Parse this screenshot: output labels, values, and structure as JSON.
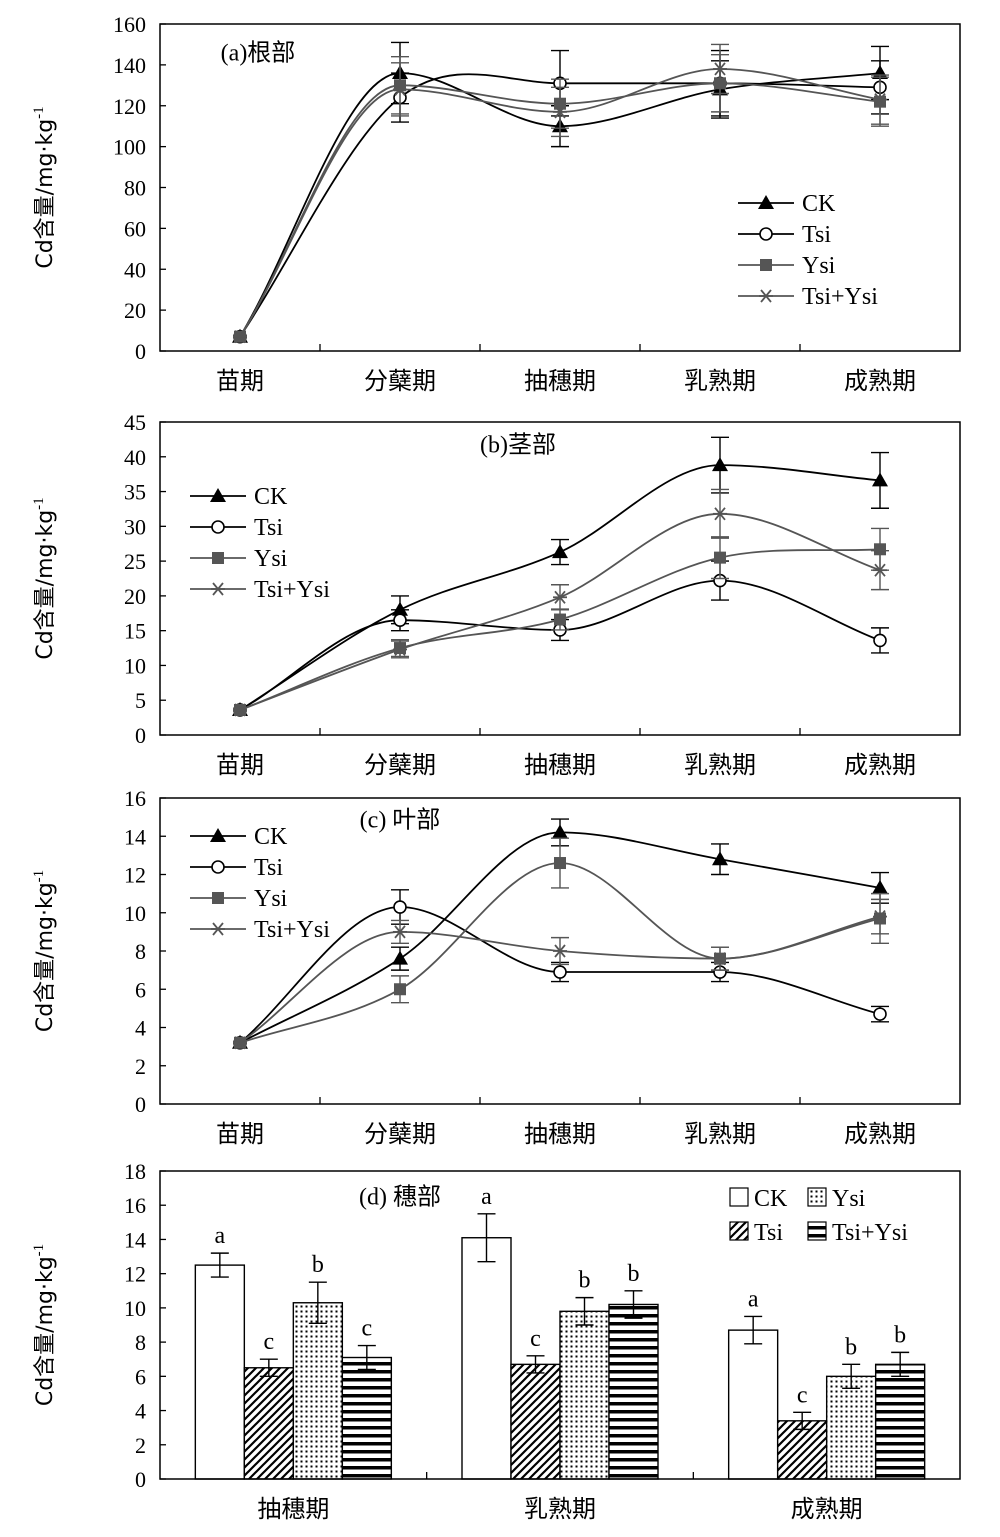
{
  "figure": {
    "y_axis_label": "Cd含量/mg·kg",
    "y_axis_label_superscript": "-1",
    "series_names": [
      "CK",
      "Tsi",
      "Ysi",
      "Tsi+Ysi"
    ],
    "series_markers": {
      "CK": "filled-triangle",
      "Tsi": "open-circle",
      "Ysi": "filled-square",
      "Tsi+Ysi": "asterisk"
    },
    "bar_patterns": {
      "CK": "open",
      "Tsi": "diagonal-hatch",
      "Ysi": "dotted",
      "Tsi+Ysi": "horizontal-stripes"
    },
    "colors": {
      "dark_series": "#000000",
      "gray_series": "#555555",
      "frame": "#000000",
      "background": "#ffffff"
    }
  },
  "chart_data": [
    {
      "id": "a",
      "type": "line",
      "title": "(a)根部",
      "categories": [
        "苗期",
        "分蘖期",
        "抽穗期",
        "乳熟期",
        "成熟期"
      ],
      "ylim": [
        0,
        160
      ],
      "yticks": [
        "0",
        "20",
        "40",
        "60",
        "80",
        "100",
        "120",
        "140",
        "160"
      ],
      "legend_position": "bottom-right",
      "series": [
        {
          "name": "CK",
          "values": [
            7,
            136,
            110,
            128,
            136
          ],
          "errors": [
            0,
            15,
            10,
            14,
            13
          ]
        },
        {
          "name": "Tsi",
          "values": [
            7,
            124,
            131,
            131,
            129
          ],
          "errors": [
            0,
            12,
            16,
            16,
            13
          ]
        },
        {
          "name": "Ysi",
          "values": [
            7,
            130,
            121,
            131,
            122
          ],
          "errors": [
            0,
            14,
            12,
            14,
            12
          ]
        },
        {
          "name": "Tsi+Ysi",
          "values": [
            7,
            128,
            117,
            138,
            123
          ],
          "errors": [
            0,
            13,
            12,
            12,
            12
          ]
        }
      ]
    },
    {
      "id": "b",
      "type": "line",
      "title": "(b)茎部",
      "categories": [
        "苗期",
        "分蘖期",
        "抽穗期",
        "乳熟期",
        "成熟期"
      ],
      "ylim": [
        0,
        45
      ],
      "yticks": [
        "0",
        "5",
        "10",
        "15",
        "20",
        "25",
        "30",
        "35",
        "40",
        "45"
      ],
      "legend_position": "top-left",
      "series": [
        {
          "name": "CK",
          "values": [
            3.6,
            18,
            26.3,
            38.8,
            36.6
          ],
          "errors": [
            0,
            2,
            1.8,
            4,
            4
          ]
        },
        {
          "name": "Tsi",
          "values": [
            3.6,
            16.5,
            15.1,
            22.2,
            13.6
          ],
          "errors": [
            0,
            1.5,
            1.5,
            2.8,
            1.8
          ]
        },
        {
          "name": "Ysi",
          "values": [
            3.6,
            12.5,
            16.6,
            25.5,
            26.7
          ],
          "errors": [
            0,
            1.2,
            1.5,
            3,
            3
          ]
        },
        {
          "name": "Tsi+Ysi",
          "values": [
            3.6,
            12.3,
            19.8,
            31.8,
            23.7
          ],
          "errors": [
            0,
            1.2,
            1.8,
            3.5,
            2.8
          ]
        }
      ]
    },
    {
      "id": "c",
      "type": "line",
      "title": "(c) 叶部",
      "categories": [
        "苗期",
        "分蘖期",
        "抽穗期",
        "乳熟期",
        "成熟期"
      ],
      "ylim": [
        0,
        16
      ],
      "yticks": [
        "0",
        "2",
        "4",
        "6",
        "8",
        "10",
        "12",
        "14",
        "16"
      ],
      "legend_position": "top-left",
      "series": [
        {
          "name": "CK",
          "values": [
            3.2,
            7.6,
            14.2,
            12.8,
            11.3
          ],
          "errors": [
            0,
            0.6,
            0.7,
            0.8,
            0.8
          ]
        },
        {
          "name": "Tsi",
          "values": [
            3.2,
            10.3,
            6.9,
            6.9,
            4.7
          ],
          "errors": [
            0,
            0.9,
            0.5,
            0.5,
            0.4
          ]
        },
        {
          "name": "Ysi",
          "values": [
            3.2,
            6.0,
            12.6,
            7.6,
            9.7
          ],
          "errors": [
            0,
            0.7,
            1.3,
            0.6,
            1.3
          ]
        },
        {
          "name": "Tsi+Ysi",
          "values": [
            3.2,
            9.0,
            8.0,
            7.6,
            9.8
          ],
          "errors": [
            0,
            0.6,
            0.7,
            0.6,
            0.9
          ]
        }
      ]
    },
    {
      "id": "d",
      "type": "bar",
      "title": "(d) 穗部",
      "categories": [
        "抽穗期",
        "乳熟期",
        "成熟期"
      ],
      "ylim": [
        0,
        18
      ],
      "yticks": [
        "0",
        "2",
        "4",
        "6",
        "8",
        "10",
        "12",
        "14",
        "16",
        "18"
      ],
      "legend_position": "top-right",
      "series": [
        {
          "name": "CK",
          "values": [
            12.5,
            14.1,
            8.7
          ],
          "errors": [
            0.7,
            1.4,
            0.8
          ],
          "letters": [
            "a",
            "a",
            "a"
          ]
        },
        {
          "name": "Tsi",
          "values": [
            6.5,
            6.7,
            3.4
          ],
          "errors": [
            0.5,
            0.5,
            0.5
          ],
          "letters": [
            "c",
            "c",
            "c"
          ]
        },
        {
          "name": "Ysi",
          "values": [
            10.3,
            9.8,
            6.0
          ],
          "errors": [
            1.2,
            0.8,
            0.7
          ],
          "letters": [
            "b",
            "b",
            "b"
          ]
        },
        {
          "name": "Tsi+Ysi",
          "values": [
            7.1,
            10.2,
            6.7
          ],
          "errors": [
            0.7,
            0.8,
            0.7
          ],
          "letters": [
            "c",
            "b",
            "b"
          ]
        }
      ]
    }
  ]
}
